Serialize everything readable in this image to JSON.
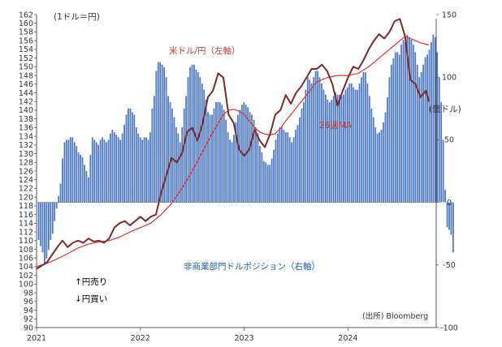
{
  "chart_data": {
    "type": "bar+line",
    "labels": {
      "left_unit": "(1ドル＝円)",
      "right_unit": "(億ドル)",
      "usdjpy": "米ドル/円（左軸）",
      "ma": "26週MA",
      "position": "非商業部門ドルポジション（右軸）",
      "yen_sell": "↑円売り",
      "yen_buy": "↓円買い",
      "source": "(出所) Bloomberg"
    },
    "left_axis": {
      "min": 90,
      "max": 162,
      "step": 2
    },
    "right_axis": {
      "min": -100,
      "max": 150,
      "step": 50
    },
    "x_axis": {
      "ticks": [
        "2021",
        "2022",
        "2023",
        "2024"
      ],
      "tick_positions": [
        2021,
        2022,
        2023,
        2024
      ],
      "range": [
        2021.0,
        2024.85
      ]
    },
    "series": [
      {
        "name": "米ドル/円",
        "axis": "left",
        "color": "#7b2b2b",
        "type": "line",
        "points": [
          [
            2021.0,
            103.5
          ],
          [
            2021.1,
            105.0
          ],
          [
            2021.2,
            108.5
          ],
          [
            2021.25,
            110.0
          ],
          [
            2021.3,
            108.5
          ],
          [
            2021.35,
            109.5
          ],
          [
            2021.4,
            110.0
          ],
          [
            2021.45,
            109.5
          ],
          [
            2021.5,
            110.5
          ],
          [
            2021.55,
            109.8
          ],
          [
            2021.6,
            110.0
          ],
          [
            2021.65,
            109.5
          ],
          [
            2021.7,
            110.5
          ],
          [
            2021.75,
            113.0
          ],
          [
            2021.8,
            114.0
          ],
          [
            2021.85,
            114.5
          ],
          [
            2021.9,
            113.5
          ],
          [
            2021.95,
            114.5
          ],
          [
            2022.0,
            115.5
          ],
          [
            2022.05,
            114.5
          ],
          [
            2022.1,
            115.5
          ],
          [
            2022.15,
            116.0
          ],
          [
            2022.2,
            121.0
          ],
          [
            2022.25,
            125.0
          ],
          [
            2022.3,
            129.0
          ],
          [
            2022.35,
            128.0
          ],
          [
            2022.4,
            130.0
          ],
          [
            2022.45,
            135.0
          ],
          [
            2022.5,
            136.0
          ],
          [
            2022.55,
            133.0
          ],
          [
            2022.6,
            137.0
          ],
          [
            2022.65,
            143.0
          ],
          [
            2022.7,
            144.5
          ],
          [
            2022.75,
            148.5
          ],
          [
            2022.8,
            147.5
          ],
          [
            2022.85,
            139.0
          ],
          [
            2022.9,
            137.0
          ],
          [
            2022.95,
            131.0
          ],
          [
            2023.0,
            129.5
          ],
          [
            2023.05,
            131.0
          ],
          [
            2023.1,
            135.5
          ],
          [
            2023.15,
            133.0
          ],
          [
            2023.2,
            131.5
          ],
          [
            2023.25,
            134.5
          ],
          [
            2023.3,
            139.0
          ],
          [
            2023.35,
            140.0
          ],
          [
            2023.4,
            143.5
          ],
          [
            2023.45,
            141.5
          ],
          [
            2023.5,
            144.0
          ],
          [
            2023.55,
            145.5
          ],
          [
            2023.6,
            147.5
          ],
          [
            2023.65,
            149.5
          ],
          [
            2023.7,
            149.5
          ],
          [
            2023.75,
            150.5
          ],
          [
            2023.8,
            149.0
          ],
          [
            2023.85,
            146.0
          ],
          [
            2023.9,
            141.0
          ],
          [
            2023.95,
            144.5
          ],
          [
            2024.0,
            147.5
          ],
          [
            2024.05,
            150.0
          ],
          [
            2024.1,
            149.5
          ],
          [
            2024.15,
            151.5
          ],
          [
            2024.2,
            154.0
          ],
          [
            2024.25,
            156.0
          ],
          [
            2024.3,
            157.5
          ],
          [
            2024.35,
            156.5
          ],
          [
            2024.4,
            158.0
          ],
          [
            2024.45,
            160.5
          ],
          [
            2024.5,
            161.0
          ],
          [
            2024.55,
            157.0
          ],
          [
            2024.6,
            147.0
          ],
          [
            2024.65,
            146.0
          ],
          [
            2024.7,
            143.0
          ],
          [
            2024.75,
            144.5
          ],
          [
            2024.78,
            142.0
          ]
        ]
      },
      {
        "name": "26週MA",
        "axis": "left",
        "color": "#e03030",
        "type": "line",
        "points": [
          [
            2021.0,
            104.0
          ],
          [
            2021.1,
            104.8
          ],
          [
            2021.2,
            105.8
          ],
          [
            2021.3,
            107.0
          ],
          [
            2021.4,
            108.3
          ],
          [
            2021.5,
            109.2
          ],
          [
            2021.6,
            109.7
          ],
          [
            2021.7,
            110.0
          ],
          [
            2021.8,
            110.8
          ],
          [
            2021.9,
            112.0
          ],
          [
            2022.0,
            113.0
          ],
          [
            2022.1,
            114.0
          ],
          [
            2022.2,
            116.0
          ],
          [
            2022.3,
            118.5
          ],
          [
            2022.4,
            122.0
          ],
          [
            2022.5,
            126.0
          ],
          [
            2022.6,
            130.5
          ],
          [
            2022.7,
            135.0
          ],
          [
            2022.8,
            139.0
          ],
          [
            2022.85,
            140.0
          ],
          [
            2022.9,
            140.2
          ],
          [
            2022.95,
            139.8
          ],
          [
            2023.0,
            139.0
          ],
          [
            2023.05,
            137.5
          ],
          [
            2023.1,
            136.0
          ],
          [
            2023.15,
            135.0
          ],
          [
            2023.2,
            134.5
          ],
          [
            2023.25,
            134.3
          ],
          [
            2023.3,
            134.6
          ],
          [
            2023.35,
            135.8
          ],
          [
            2023.4,
            137.5
          ],
          [
            2023.45,
            139.0
          ],
          [
            2023.5,
            140.5
          ],
          [
            2023.55,
            142.0
          ],
          [
            2023.6,
            143.5
          ],
          [
            2023.65,
            145.0
          ],
          [
            2023.7,
            146.5
          ],
          [
            2023.8,
            147.5
          ],
          [
            2023.9,
            148.0
          ],
          [
            2024.0,
            148.0
          ],
          [
            2024.1,
            148.5
          ],
          [
            2024.2,
            150.0
          ],
          [
            2024.3,
            152.0
          ],
          [
            2024.4,
            154.0
          ],
          [
            2024.5,
            156.0
          ],
          [
            2024.55,
            157.0
          ],
          [
            2024.6,
            156.5
          ],
          [
            2024.7,
            155.5
          ],
          [
            2024.78,
            155.0
          ]
        ]
      },
      {
        "name": "非商業部門ドルポジション",
        "axis": "right",
        "color": "#4a78c2",
        "type": "bar",
        "bar_start": 2021.02,
        "bar_step": 0.0192,
        "values": [
          -30,
          -35,
          -40,
          -50,
          -45,
          -38,
          -30,
          -25,
          -15,
          -5,
          5,
          15,
          35,
          48,
          50,
          50,
          52,
          52,
          48,
          45,
          40,
          38,
          36,
          30,
          25,
          20,
          38,
          52,
          50,
          48,
          46,
          50,
          52,
          50,
          48,
          50,
          55,
          58,
          56,
          54,
          52,
          50,
          55,
          62,
          70,
          75,
          75,
          72,
          70,
          60,
          55,
          52,
          50,
          52,
          52,
          50,
          56,
          75,
          85,
          105,
          112,
          112,
          110,
          108,
          100,
          85,
          80,
          75,
          68,
          60,
          55,
          48,
          60,
          75,
          85,
          100,
          108,
          110,
          110,
          106,
          104,
          100,
          95,
          90,
          82,
          72,
          70,
          70,
          75,
          80,
          80,
          80,
          78,
          74,
          66,
          56,
          50,
          48,
          54,
          64,
          70,
          74,
          78,
          80,
          78,
          76,
          72,
          70,
          66,
          60,
          55,
          45,
          40,
          33,
          32,
          30,
          30,
          35,
          42,
          50,
          55,
          60,
          60,
          58,
          56,
          56,
          52,
          48,
          52,
          58,
          62,
          68,
          75,
          80,
          90,
          100,
          98,
          95,
          100,
          105,
          105,
          100,
          95,
          90,
          86,
          82,
          80,
          82,
          85,
          88,
          86,
          86,
          85,
          86,
          90,
          92,
          95,
          95,
          92,
          90,
          90,
          95,
          100,
          104,
          104,
          95,
          85,
          75,
          68,
          60,
          55,
          56,
          58,
          64,
          72,
          84,
          100,
          110,
          115,
          120,
          120,
          118,
          126,
          130,
          128,
          134,
          132,
          130,
          126,
          120,
          110,
          100,
          104,
          110,
          116,
          118,
          122,
          128,
          134,
          132,
          120,
          100,
          80,
          50,
          10,
          -20,
          -22,
          -26,
          -40
        ]
      }
    ]
  }
}
